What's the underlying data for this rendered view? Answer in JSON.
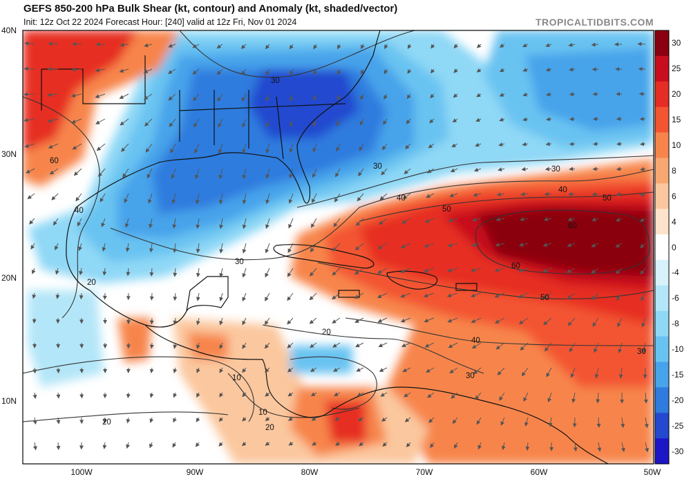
{
  "header": {
    "title": "GEFS 850-200 hPa Bulk Shear (kt, contour) and Anomaly (kt, shaded/vector)",
    "subtitle": "Init: 12z Oct 22 2024   Forecast Hour: [240]   valid at 12z Fri, Nov 01 2024",
    "brand": "TROPICALTIDBITS.COM"
  },
  "axes": {
    "lat_labels": [
      "40N",
      "30N",
      "20N",
      "10N"
    ],
    "lon_labels": [
      "100W",
      "90W",
      "80W",
      "70W",
      "60W",
      "50W"
    ]
  },
  "colorbar": {
    "labels": [
      "30",
      "25",
      "20",
      "15",
      "10",
      "8",
      "6",
      "4",
      "0",
      "-4",
      "-6",
      "-8",
      "-10",
      "-15",
      "-20",
      "-25",
      "-30"
    ],
    "colors": [
      "#8b0010",
      "#c80e1e",
      "#e62d24",
      "#f35432",
      "#f7854b",
      "#f9a770",
      "#fbc79e",
      "#fde3cc",
      "#ffffff",
      "#d8f2fb",
      "#b3e6f8",
      "#8fd8f6",
      "#69c3f1",
      "#47a3ea",
      "#2f7bde",
      "#2448cf",
      "#1d16c7"
    ]
  },
  "contours": {
    "labels": [
      "30",
      "30",
      "30",
      "30",
      "40",
      "40",
      "40",
      "40",
      "50",
      "50",
      "50",
      "60",
      "60",
      "60",
      "20",
      "20",
      "20",
      "20",
      "10",
      "10",
      "30",
      "30"
    ]
  },
  "colors": {
    "land_outline": "#111111",
    "contour": "#333333",
    "vector": "#555555"
  }
}
